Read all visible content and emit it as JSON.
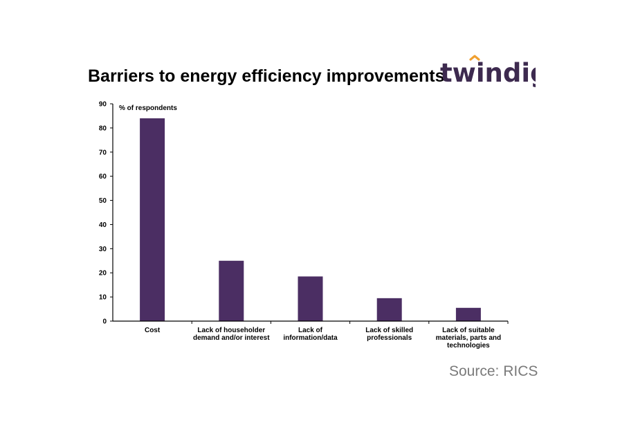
{
  "title": "Barriers to energy efficiency improvements",
  "logo": {
    "text": "twindig",
    "accent_color": "#f0a030",
    "text_color": "#3d2a4f"
  },
  "source": "Source: RICS",
  "chart_data": {
    "type": "bar",
    "title": "Barriers to energy efficiency improvements",
    "ylabel": "% of respondents",
    "xlabel": "",
    "ylim": [
      0,
      90
    ],
    "yticks": [
      0,
      10,
      20,
      30,
      40,
      50,
      60,
      70,
      80,
      90
    ],
    "categories": [
      [
        "Cost"
      ],
      [
        "Lack of householder",
        "demand and/or interest"
      ],
      [
        "Lack of",
        "information/data"
      ],
      [
        "Lack of skilled",
        "professionals"
      ],
      [
        "Lack of suitable",
        "materials, parts and",
        "technologies"
      ]
    ],
    "values": [
      84,
      25,
      18.5,
      9.5,
      5.5
    ],
    "bar_color": "#4b2e63",
    "grid": false,
    "legend": "none"
  }
}
